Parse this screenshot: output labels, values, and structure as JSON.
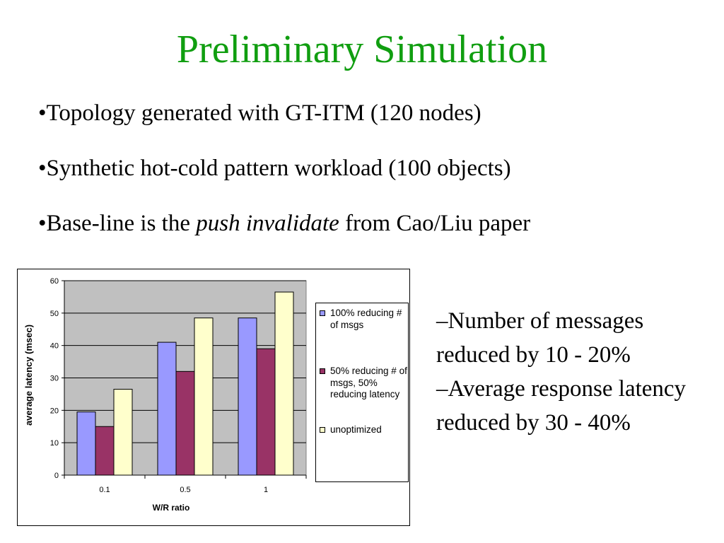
{
  "slide": {
    "title": "Preliminary Simulation",
    "bullets": [
      {
        "before": "•Topology generated with GT-ITM (120 nodes)",
        "emph": "",
        "after": ""
      },
      {
        "before": "•Synthetic hot-cold pattern workload (100 objects)",
        "emph": "",
        "after": ""
      },
      {
        "before": "•Base-line is the ",
        "emph": "push invalidate",
        "after": " from Cao/Liu paper"
      }
    ],
    "side_notes": [
      "–Number of messages reduced by 10 - 20%",
      "–Average response latency reduced by 30 - 40%"
    ]
  },
  "colors": {
    "title": "#109e10",
    "plot_background": "#c0c0c0",
    "series": [
      "#9999ff",
      "#993366",
      "#ffffcc"
    ]
  },
  "chart_data": {
    "type": "bar",
    "title": "",
    "xlabel": "W/R ratio",
    "ylabel": "average latency (msec)",
    "categories": [
      "0.1",
      "0.5",
      "1"
    ],
    "ylim": [
      0,
      60
    ],
    "yticks": [
      0,
      10,
      20,
      30,
      40,
      50,
      60
    ],
    "grid": true,
    "legend_position": "right",
    "series": [
      {
        "name": "100% reducing # of msgs",
        "values": [
          19.5,
          41,
          48.5
        ]
      },
      {
        "name": "50% reducing # of msgs, 50% reducing latency",
        "values": [
          15,
          32,
          39
        ]
      },
      {
        "name": "unoptimized",
        "values": [
          26.5,
          48.5,
          56.5
        ]
      }
    ]
  }
}
